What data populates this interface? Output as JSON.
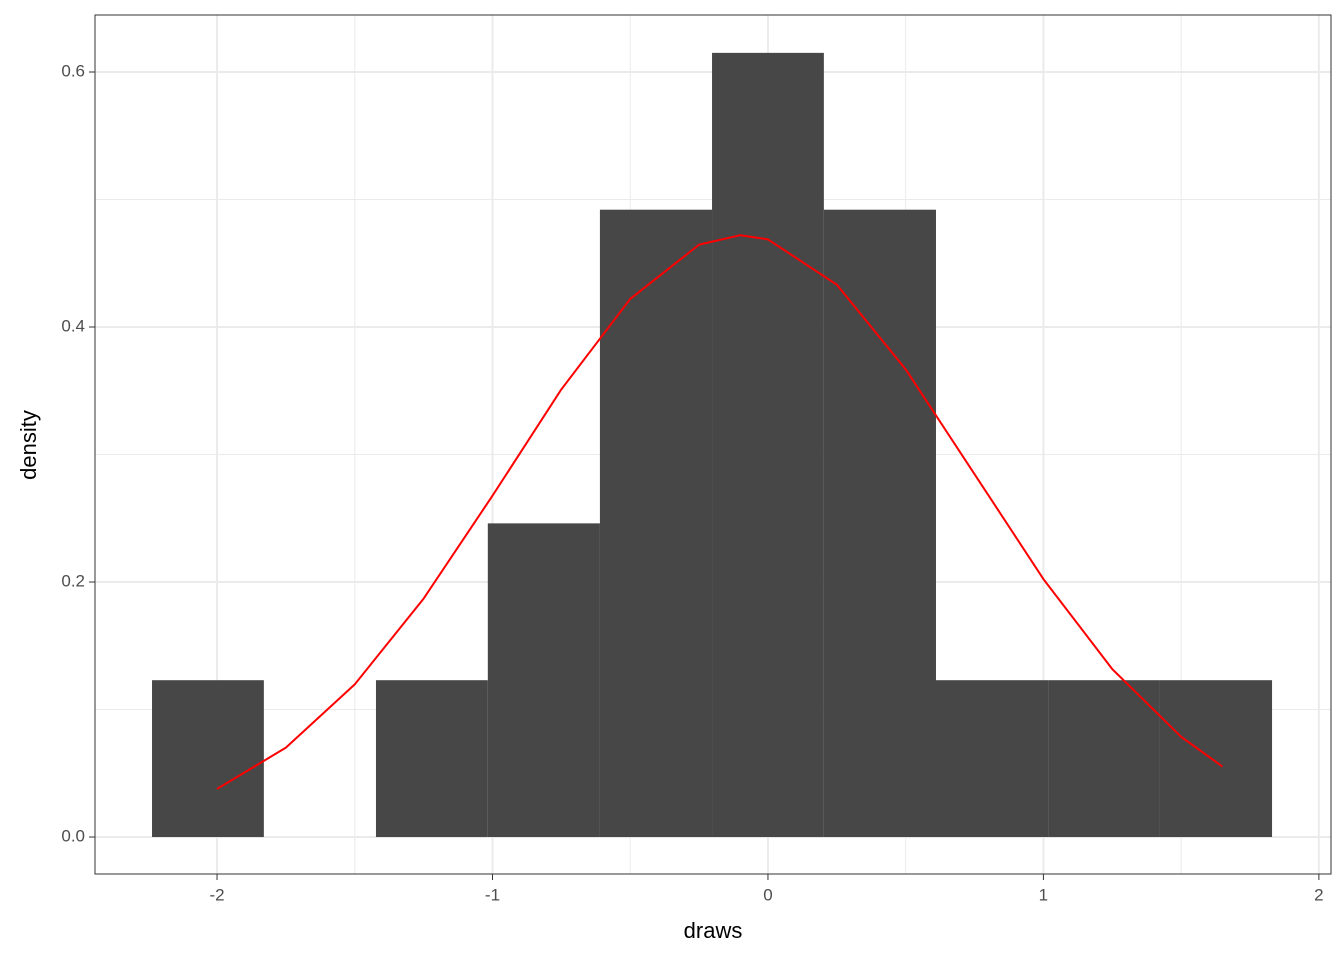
{
  "chart_data": {
    "type": "histogram",
    "xlabel": "draws",
    "ylabel": "density",
    "bins": [
      -2.236,
      -1.83,
      -1.423,
      -1.017,
      -0.61,
      -0.203,
      0.203,
      0.61,
      1.017,
      1.423,
      1.83
    ],
    "values": [
      0.123,
      0,
      0.123,
      0.246,
      0.492,
      0.615,
      0.492,
      0.123,
      0.123,
      0.123
    ],
    "color": "#474747",
    "line": {
      "color": "#ff0000",
      "x": [
        -2,
        -1.75,
        -1.5,
        -1.25,
        -1,
        -0.75,
        -0.5,
        -0.25,
        -0.1,
        0,
        0.25,
        0.5,
        0.75,
        1,
        1.25,
        1.5,
        1.65
      ],
      "values": [
        0.0377,
        0.0701,
        0.1197,
        0.187,
        0.2677,
        0.3511,
        0.422,
        0.4646,
        0.472,
        0.4687,
        0.4332,
        0.3668,
        0.2846,
        0.2023,
        0.1317,
        0.0786,
        0.0553
      ]
    },
    "xlim": [
      -2.443,
      2.044
    ],
    "ylim": [
      -0.029,
      0.6447
    ],
    "xticks": [
      -2,
      -1,
      0,
      1,
      2
    ],
    "yticks": [
      {
        "value": 0,
        "label": "0.0"
      },
      {
        "value": 0.2,
        "label": "0.2"
      },
      {
        "value": 0.4,
        "label": "0.4"
      },
      {
        "value": 0.6,
        "label": "0.6"
      }
    ],
    "xminor": [
      -1.5,
      -0.5,
      0.5,
      1.5
    ],
    "yminor": [
      0.1,
      0.3,
      0.5
    ],
    "grid": true
  }
}
